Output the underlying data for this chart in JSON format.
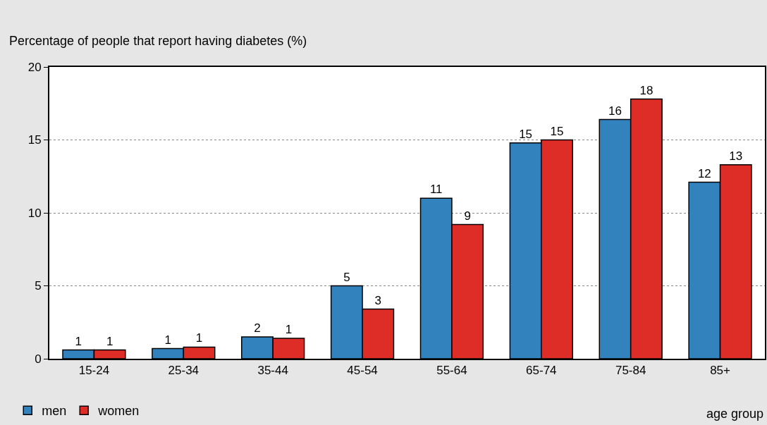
{
  "chart_data": {
    "type": "bar",
    "ylabel": "Percentage of people that report having diabetes (%)",
    "xlabel": "age group",
    "categories": [
      "15-24",
      "25-34",
      "35-44",
      "45-54",
      "55-64",
      "65-74",
      "75-84",
      "85+"
    ],
    "series": [
      {
        "name": "men",
        "color": "#3282be",
        "values": [
          0.6,
          0.7,
          1.5,
          5.0,
          11.0,
          14.8,
          16.4,
          12.1
        ],
        "value_labels": [
          "1",
          "1",
          "2",
          "5",
          "11",
          "15",
          "16",
          "12"
        ]
      },
      {
        "name": "women",
        "color": "#de2d26",
        "values": [
          0.6,
          0.8,
          1.4,
          3.4,
          9.2,
          15.0,
          17.8,
          13.3
        ],
        "value_labels": [
          "1",
          "1",
          "1",
          "3",
          "9",
          "15",
          "18",
          "13"
        ]
      }
    ],
    "ylim": [
      0,
      20
    ],
    "yticks": [
      0,
      5,
      10,
      15,
      20
    ],
    "grid": "y",
    "legend": "bottom left"
  }
}
